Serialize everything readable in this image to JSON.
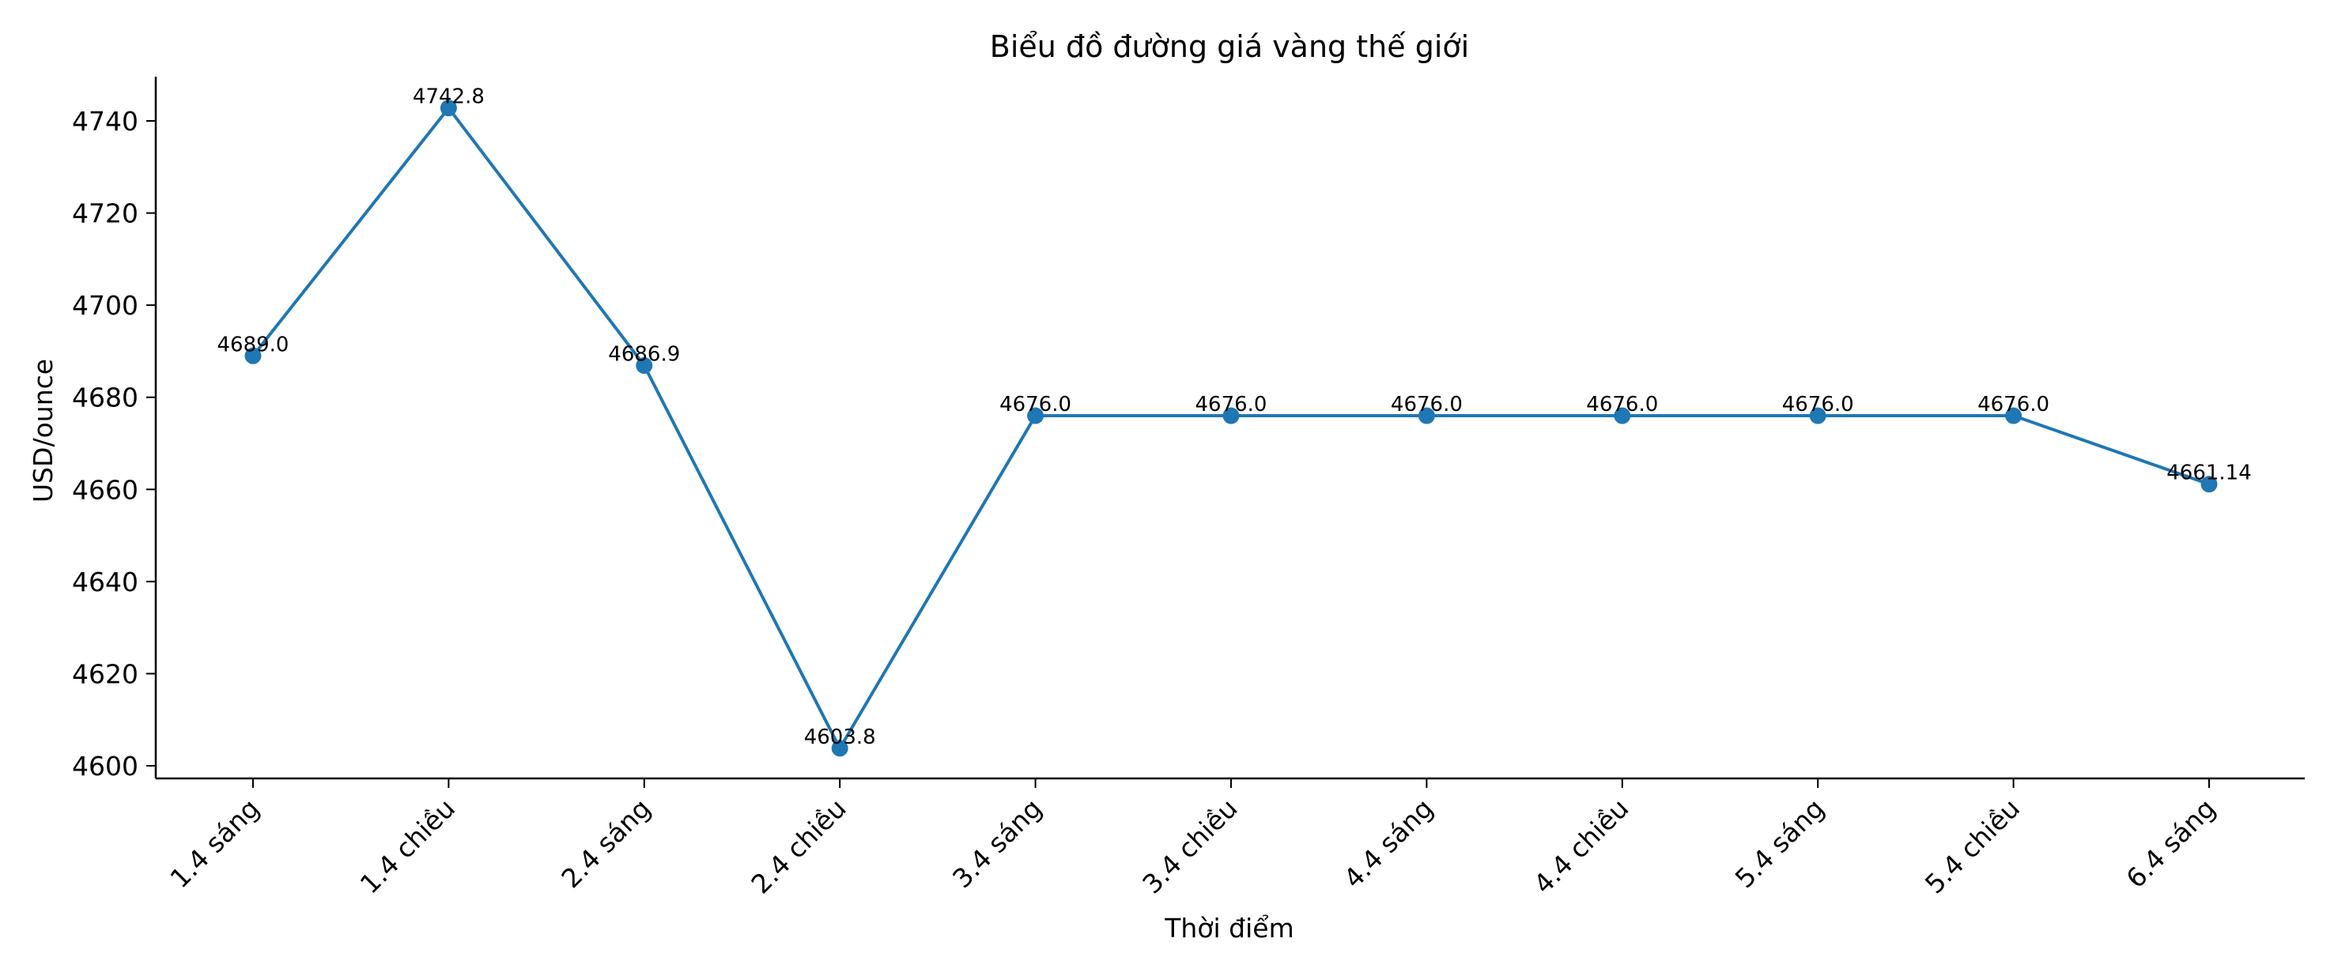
{
  "chart_data": {
    "type": "line",
    "title": "Biểu đồ đường giá vàng thế giới",
    "xlabel": "Thời điểm",
    "ylabel": "USD/ounce",
    "categories": [
      "1.4 sáng",
      "1.4 chiều",
      "2.4 sáng",
      "2.4 chiều",
      "3.4 sáng",
      "3.4 chiều",
      "4.4 sáng",
      "4.4 chiều",
      "5.4 sáng",
      "5.4 chiều",
      "6.4 sáng"
    ],
    "values": [
      4689.0,
      4742.8,
      4686.9,
      4603.8,
      4676.0,
      4676.0,
      4676.0,
      4676.0,
      4676.0,
      4676.0,
      4661.14
    ],
    "value_labels": [
      "4689.0",
      "4742.8",
      "4686.9",
      "4603.8",
      "4676.0",
      "4676.0",
      "4676.0",
      "4676.0",
      "4676.0",
      "4676.0",
      "4661.14"
    ],
    "yticks": [
      4600,
      4620,
      4640,
      4660,
      4680,
      4700,
      4720,
      4740
    ],
    "ylim": [
      4597,
      4750
    ],
    "grid": false,
    "legend": "none",
    "color": "#1f77b4"
  }
}
